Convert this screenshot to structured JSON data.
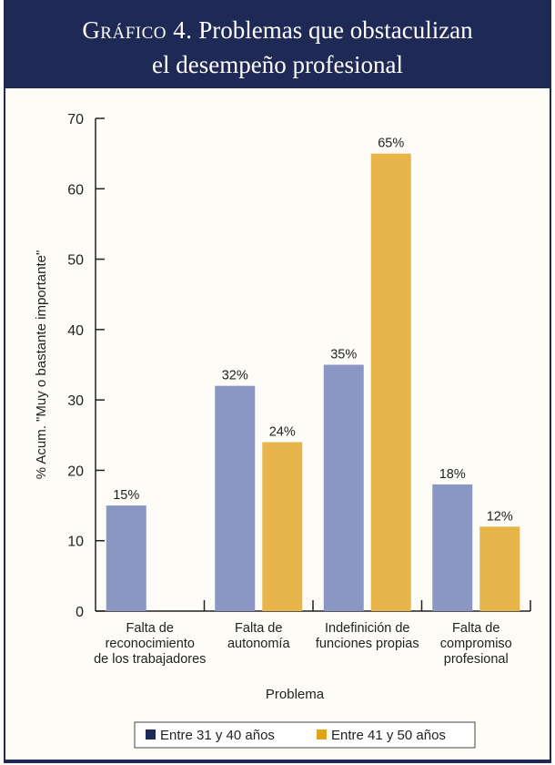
{
  "header": {
    "title_prefix": "Gráfico 4.",
    "title_rest": "Problemas que obstaculizan",
    "title_line2": "el desempeño profesional"
  },
  "colors": {
    "header_bg": "#1e2a55",
    "series1": "#8a97c3",
    "series2": "#e8b54a"
  },
  "chart_data": {
    "type": "bar",
    "title": "",
    "xlabel": "Problema",
    "ylabel": "% Acum. \"Muy o bastante importante\"",
    "ylim": [
      0,
      70
    ],
    "yticks": [
      0,
      10,
      20,
      30,
      40,
      50,
      60,
      70
    ],
    "categories": [
      [
        "Falta de",
        "reconocimiento",
        "de los trabajadores"
      ],
      [
        "Falta de",
        "autonomía"
      ],
      [
        "Indefinición de",
        "funciones propias"
      ],
      [
        "Falta de",
        "compromiso",
        "profesional"
      ]
    ],
    "series": [
      {
        "name": "Entre 31 y 40 años",
        "color": "#8a97c3",
        "values": [
          15,
          32,
          35,
          18
        ],
        "labels": [
          "15%",
          "32%",
          "35%",
          "18%"
        ]
      },
      {
        "name": "Entre 41 y 50 años",
        "color": "#e8b54a",
        "values": [
          null,
          24,
          65,
          12
        ],
        "labels": [
          "",
          "24%",
          "65%",
          "12%"
        ]
      }
    ],
    "legend_position": "bottom",
    "grid": false
  }
}
